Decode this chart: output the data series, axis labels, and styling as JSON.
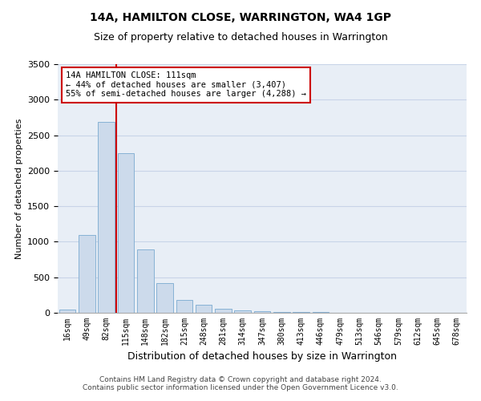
{
  "title": "14A, HAMILTON CLOSE, WARRINGTON, WA4 1GP",
  "subtitle": "Size of property relative to detached houses in Warrington",
  "xlabel": "Distribution of detached houses by size in Warrington",
  "ylabel": "Number of detached properties",
  "categories": [
    "16sqm",
    "49sqm",
    "82sqm",
    "115sqm",
    "148sqm",
    "182sqm",
    "215sqm",
    "248sqm",
    "281sqm",
    "314sqm",
    "347sqm",
    "380sqm",
    "413sqm",
    "446sqm",
    "479sqm",
    "513sqm",
    "546sqm",
    "579sqm",
    "612sqm",
    "645sqm",
    "678sqm"
  ],
  "values": [
    50,
    1090,
    2690,
    2250,
    890,
    420,
    185,
    110,
    55,
    38,
    18,
    12,
    8,
    6,
    4,
    3,
    2,
    2,
    1,
    1,
    1
  ],
  "bar_color": "#ccdaeb",
  "bar_edge_color": "#7aaad0",
  "grid_color": "#c8d4e8",
  "bg_color": "#e8eef6",
  "vline_color": "#cc0000",
  "vline_pos": 2.5,
  "annotation_text": "14A HAMILTON CLOSE: 111sqm\n← 44% of detached houses are smaller (3,407)\n55% of semi-detached houses are larger (4,288) →",
  "annotation_box_color": "white",
  "annotation_box_edge_color": "#cc0000",
  "ylim": [
    0,
    3500
  ],
  "yticks": [
    0,
    500,
    1000,
    1500,
    2000,
    2500,
    3000,
    3500
  ],
  "footer_line1": "Contains HM Land Registry data © Crown copyright and database right 2024.",
  "footer_line2": "Contains public sector information licensed under the Open Government Licence v3.0.",
  "title_fontsize": 10,
  "subtitle_fontsize": 9,
  "ylabel_fontsize": 8,
  "xlabel_fontsize": 9,
  "tick_fontsize": 7,
  "annotation_fontsize": 7.5,
  "footer_fontsize": 6.5
}
